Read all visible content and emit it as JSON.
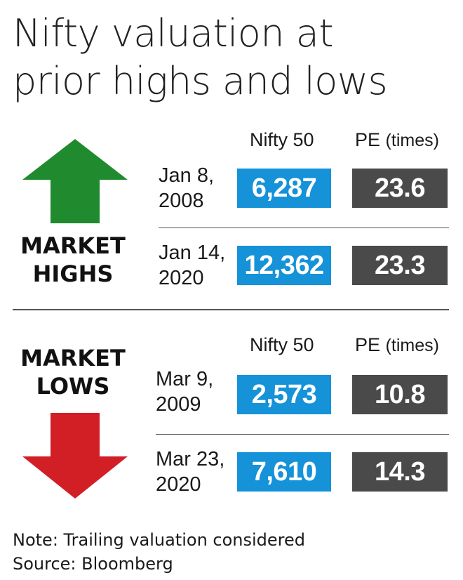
{
  "title": {
    "line1": "Nifty valuation at",
    "line2": "prior highs and lows"
  },
  "columns": {
    "nifty": "Nifty 50",
    "pe": "PE",
    "pe_unit": "(times)"
  },
  "highs": {
    "label_line1": "MARKET",
    "label_line2": "HIGHS",
    "rows": [
      {
        "date_line1": "Jan 8,",
        "date_line2": "2008",
        "nifty": "6,287",
        "pe": "23.6"
      },
      {
        "date_line1": "Jan 14,",
        "date_line2": "2020",
        "nifty": "12,362",
        "pe": "23.3"
      }
    ]
  },
  "lows": {
    "label_line1": "MARKET",
    "label_line2": "LOWS",
    "rows": [
      {
        "date_line1": "Mar 9,",
        "date_line2": "2009",
        "nifty": "2,573",
        "pe": "10.8"
      },
      {
        "date_line1": "Mar 23,",
        "date_line2": "2020",
        "nifty": "7,610",
        "pe": "14.3"
      }
    ]
  },
  "footer": {
    "note": "Note: Trailing valuation considered",
    "source": "Source: Bloomberg"
  },
  "colors": {
    "nifty_box": "#1592d8",
    "pe_box": "#4a4a4a",
    "up_arrow": "#1f8a2e",
    "down_arrow": "#d21f26"
  },
  "chart_data": {
    "type": "table",
    "title": "Nifty valuation at prior highs and lows",
    "columns": [
      "Nifty 50",
      "PE (times)"
    ],
    "groups": [
      {
        "name": "MARKET HIGHS",
        "rows": [
          {
            "date": "Jan 8, 2008",
            "nifty_50": 6287,
            "pe": 23.6
          },
          {
            "date": "Jan 14, 2020",
            "nifty_50": 12362,
            "pe": 23.3
          }
        ]
      },
      {
        "name": "MARKET LOWS",
        "rows": [
          {
            "date": "Mar 9, 2009",
            "nifty_50": 2573,
            "pe": 10.8
          },
          {
            "date": "Mar 23, 2020",
            "nifty_50": 7610,
            "pe": 14.3
          }
        ]
      }
    ],
    "notes": [
      "Note: Trailing valuation considered",
      "Source: Bloomberg"
    ]
  }
}
